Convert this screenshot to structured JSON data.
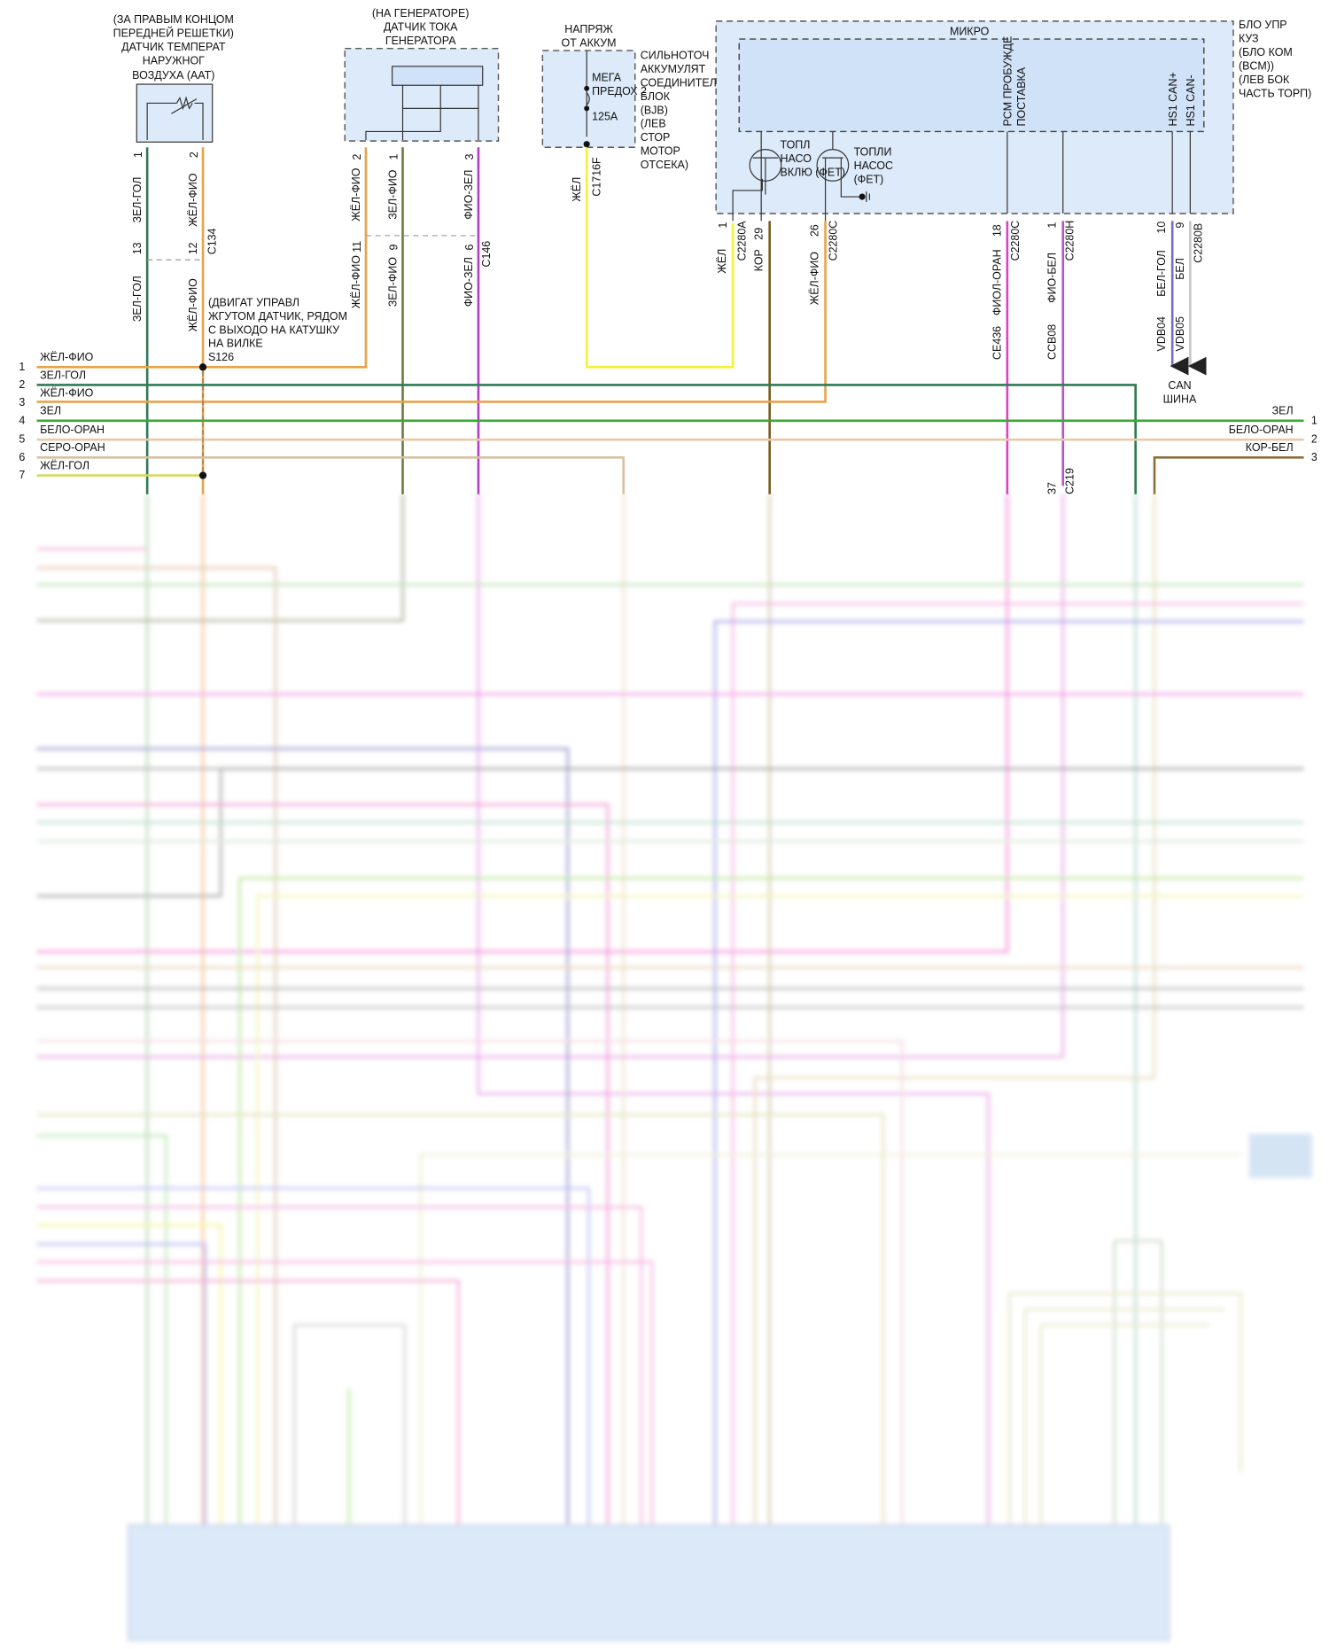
{
  "aat_sensor": {
    "title": [
      "(ЗА ПРАВЫМ КОНЦОМ",
      "ПЕРЕДНЕЙ РЕШЕТКИ)",
      "ДАТЧИК ТЕМПЕРАТ",
      "НАРУЖНОГ",
      "ВОЗДУХА (AAT)"
    ],
    "pins": [
      "1",
      "2"
    ],
    "wires_top": [
      "ЗЕЛ-ГОЛ",
      "ЖЁЛ-ФИО"
    ],
    "connector": {
      "name": "C134",
      "pins": [
        "13",
        "12"
      ]
    },
    "wires_bottom": [
      "ЗЕЛ-ГОЛ",
      "ЖЁЛ-ФИО"
    ]
  },
  "splice_note": [
    "(ДВИГАТ УПРАВЛ",
    "ЖГУТОМ ДАТЧИК, РЯДОМ",
    "С ВЫХОДО НА КАТУШКУ",
    "НА ВИЛКЕ",
    "S126"
  ],
  "generator": {
    "title": [
      "(НА ГЕНЕРАТОРЕ)",
      "ДАТЧИК ТОКА",
      "ГЕНЕРАТОРА"
    ],
    "pins": [
      "2",
      "1",
      "3"
    ],
    "wires_top": [
      "ЖЁЛ-ФИО",
      "ЗЕЛ-ФИО",
      "ФИО-ЗЕЛ"
    ],
    "connector": {
      "name": "C146",
      "pins": [
        "11",
        "9",
        "6"
      ]
    },
    "wires_bottom": [
      "ЖЁЛ-ФИО",
      "ЗЕЛ-ФИО",
      "ФИО-ЗЕЛ"
    ]
  },
  "battery": {
    "title": [
      "НАПРЯЖ",
      "ОТ АККУМ"
    ],
    "fuse": [
      "МЕГА",
      "ПРЕДОХ 2",
      "125A"
    ],
    "desc": [
      "СИЛЬНОТОЧ",
      "АККУМУЛЯТ",
      "СОЕДИНИТЕЛ",
      "БЛОК",
      "(BJB)",
      "(ЛЕВ",
      "СТОР",
      "МОТОР",
      "ОТСЕКА)"
    ],
    "wire": "ЖЁЛ",
    "connector": "C1716F"
  },
  "bcm": {
    "micro": "МИКРО",
    "desc": [
      "БЛО УПР",
      "КУЗ",
      "(БЛО КОМ",
      "(BCM))",
      "(ЛЕВ БОК",
      "ЧАСТЬ ТОРП)"
    ],
    "pcm_wakeup": [
      "PCM ПРОБУЖДЕ",
      "ПОСТАВКА"
    ],
    "can_plus": "HS1 CAN+",
    "can_minus": "HS1 CAN-",
    "fet1": [
      "ТОПЛ",
      "НАСО",
      "ВКЛЮ (ФЕТ)"
    ],
    "fet2": [
      "ТОПЛИ",
      "НАСОС",
      "(ФЕТ)"
    ],
    "pins": [
      {
        "pin": "1",
        "conn": "C2280A",
        "wire": "ЖЁЛ"
      },
      {
        "pin": "29",
        "wire": "КОР"
      },
      {
        "pin": "26",
        "conn": "C2280C",
        "wire": "ЖЁЛ-ФИО"
      },
      {
        "pin": "18",
        "conn": "C2280C",
        "wire": "ФИОЛ-ОРАН",
        "circuit": "CE436"
      },
      {
        "pin": "1",
        "conn": "C2280H",
        "wire": "ФИО-БЕЛ",
        "circuit": "CCB08"
      },
      {
        "pin": "10",
        "wire": "БЕЛ-ГОЛ",
        "circuit": "VDB04"
      },
      {
        "pin": "9",
        "conn": "C2280B",
        "wire": "БЕЛ",
        "circuit": "VDB05"
      }
    ],
    "can_bus": [
      "CAN",
      "ШИНА"
    ],
    "c219": {
      "pin": "37",
      "conn": "C219"
    }
  },
  "bus_left": [
    {
      "num": "1",
      "label": "ЖЁЛ-ФИО"
    },
    {
      "num": "2",
      "label": "ЗЕЛ-ГОЛ"
    },
    {
      "num": "3",
      "label": "ЖЁЛ-ФИО"
    },
    {
      "num": "4",
      "label": "ЗЕЛ"
    },
    {
      "num": "5",
      "label": "БЕЛО-ОРАН"
    },
    {
      "num": "6",
      "label": "СЕРО-ОРАН"
    },
    {
      "num": "7",
      "label": "ЖЁЛ-ГОЛ"
    }
  ],
  "bus_right": [
    {
      "num": "1",
      "label": "ЗЕЛ"
    },
    {
      "num": "2",
      "label": "БЕЛО-ОРАН"
    },
    {
      "num": "3",
      "label": "КОР-БЕЛ"
    }
  ],
  "colors": {
    "zel_gol": "#2f7a55",
    "zhel_fio": "#e8a24a",
    "zel_fio": "#6d7b45",
    "fio_zel": "#b23cc4",
    "zhel": "#f2f23a",
    "kor": "#7a5c1e",
    "fiol_oran": "#e040c8",
    "fio_bel": "#c050c8",
    "bel_gol": "#7a6cc0",
    "bel": "#c8c8c8",
    "zel": "#3aa832",
    "belo_oran": "#e8c9a8",
    "sero_oran": "#d8bfa0",
    "zhel_gol": "#d8d860",
    "kor_bel": "#8a7038",
    "module_fill": "#dceafa"
  }
}
